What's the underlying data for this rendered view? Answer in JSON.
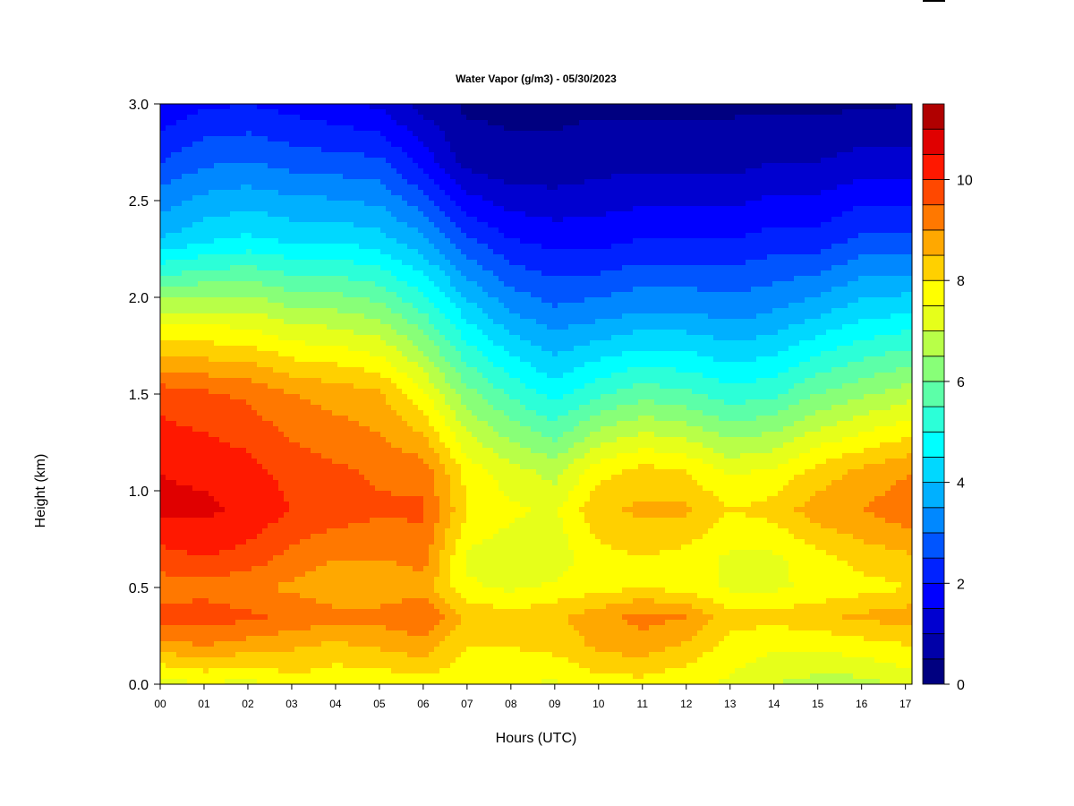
{
  "chart_data": {
    "type": "heatmap",
    "title": "Water Vapor (g/m3) - 05/30/2023",
    "xlabel": "Hours (UTC)",
    "ylabel": "Height (km)",
    "x_ticks": [
      "00",
      "01",
      "02",
      "03",
      "04",
      "05",
      "06",
      "07",
      "08",
      "09",
      "10",
      "11",
      "12",
      "13",
      "14",
      "15",
      "16",
      "17"
    ],
    "x_range_hours": [
      0,
      17.15
    ],
    "y_ticks": [
      "0.0",
      "0.5",
      "1.0",
      "1.5",
      "2.0",
      "2.5",
      "3.0"
    ],
    "ylim": [
      0,
      3
    ],
    "colorbar": {
      "ticks": [
        "0",
        "2",
        "4",
        "6",
        "8",
        "10"
      ],
      "range": [
        0,
        11.5
      ],
      "levels": 23,
      "colors": [
        "#000080",
        "#0000a8",
        "#0000d0",
        "#0000ff",
        "#0022ff",
        "#0055ff",
        "#0088ff",
        "#00b0ff",
        "#00d8ff",
        "#00ffff",
        "#2cffd8",
        "#5cffa8",
        "#88ff78",
        "#b8ff48",
        "#e6ff1a",
        "#ffff00",
        "#ffd000",
        "#ffa800",
        "#ff7800",
        "#ff4800",
        "#ff1800",
        "#e00000",
        "#b00000",
        "#800000"
      ]
    },
    "profiles": [
      {
        "hour": 0.0,
        "heights_km": [
          0.0,
          0.2,
          0.35,
          0.5,
          0.65,
          0.9,
          1.1,
          1.5,
          1.9,
          2.3,
          2.7,
          3.0
        ],
        "values": [
          7.2,
          8.8,
          9.7,
          9.2,
          9.8,
          10.6,
          10.5,
          9.8,
          7.2,
          4.0,
          2.5,
          1.6
        ]
      },
      {
        "hour": 1.0,
        "heights_km": [
          0.0,
          0.2,
          0.35,
          0.5,
          0.65,
          0.9,
          1.1,
          1.5,
          1.9,
          2.3,
          2.7,
          3.0
        ],
        "values": [
          7.5,
          9.0,
          9.8,
          9.3,
          10.0,
          10.6,
          10.4,
          9.6,
          7.2,
          4.4,
          2.9,
          1.9
        ]
      },
      {
        "hour": 2.0,
        "heights_km": [
          0.0,
          0.2,
          0.35,
          0.5,
          0.65,
          0.9,
          1.1,
          1.5,
          1.9,
          2.3,
          2.7,
          3.0
        ],
        "values": [
          7.3,
          8.8,
          9.6,
          9.1,
          9.8,
          10.4,
          10.2,
          9.4,
          7.2,
          4.6,
          3.0,
          2.0
        ]
      },
      {
        "hour": 3.0,
        "heights_km": [
          0.0,
          0.2,
          0.35,
          0.5,
          0.65,
          0.9,
          1.1,
          1.5,
          1.9,
          2.3,
          2.7,
          3.0
        ],
        "values": [
          7.8,
          8.6,
          9.4,
          8.9,
          9.3,
          10.0,
          9.8,
          9.0,
          6.8,
          4.4,
          2.8,
          1.8
        ]
      },
      {
        "hour": 4.0,
        "heights_km": [
          0.0,
          0.2,
          0.35,
          0.5,
          0.65,
          0.9,
          1.1,
          1.5,
          1.9,
          2.3,
          2.7,
          3.0
        ],
        "values": [
          7.6,
          8.4,
          9.2,
          8.6,
          9.0,
          9.8,
          9.6,
          8.8,
          6.7,
          4.4,
          2.7,
          1.6
        ]
      },
      {
        "hour": 5.0,
        "heights_km": [
          0.0,
          0.2,
          0.35,
          0.5,
          0.65,
          0.9,
          1.1,
          1.5,
          1.9,
          2.3,
          2.7,
          3.0
        ],
        "values": [
          7.6,
          8.6,
          9.2,
          8.6,
          9.0,
          9.6,
          9.4,
          8.6,
          6.4,
          4.2,
          2.6,
          1.4
        ]
      },
      {
        "hour": 6.0,
        "heights_km": [
          0.0,
          0.2,
          0.35,
          0.5,
          0.65,
          0.9,
          1.1,
          1.5,
          1.9,
          2.3,
          2.7,
          3.0
        ],
        "values": [
          7.8,
          8.8,
          9.5,
          8.8,
          9.2,
          9.6,
          9.3,
          7.6,
          5.6,
          3.6,
          1.8,
          0.8
        ]
      },
      {
        "hour": 7.0,
        "heights_km": [
          0.0,
          0.2,
          0.35,
          0.5,
          0.65,
          0.9,
          1.1,
          1.5,
          1.9,
          2.3,
          2.7,
          3.0
        ],
        "values": [
          7.6,
          8.0,
          8.4,
          7.6,
          7.4,
          8.0,
          7.8,
          6.2,
          4.4,
          2.6,
          0.8,
          0.4
        ]
      },
      {
        "hour": 8.0,
        "heights_km": [
          0.0,
          0.2,
          0.35,
          0.5,
          0.65,
          0.9,
          1.1,
          1.5,
          1.9,
          2.3,
          2.7,
          3.0
        ],
        "values": [
          7.6,
          8.0,
          8.2,
          7.4,
          7.2,
          7.6,
          7.2,
          5.4,
          3.6,
          2.0,
          0.6,
          0.4
        ]
      },
      {
        "hour": 9.0,
        "heights_km": [
          0.0,
          0.2,
          0.35,
          0.5,
          0.65,
          0.9,
          1.1,
          1.5,
          1.9,
          2.3,
          2.7,
          3.0
        ],
        "values": [
          7.4,
          8.2,
          8.4,
          7.6,
          7.2,
          7.4,
          6.8,
          4.8,
          3.2,
          1.8,
          0.6,
          0.4
        ]
      },
      {
        "hour": 10.0,
        "heights_km": [
          0.0,
          0.2,
          0.35,
          0.5,
          0.65,
          0.9,
          1.1,
          1.5,
          1.9,
          2.3,
          2.7,
          3.0
        ],
        "values": [
          7.8,
          8.6,
          8.8,
          7.8,
          7.8,
          8.4,
          7.8,
          5.4,
          3.4,
          1.8,
          0.8,
          0.4
        ]
      },
      {
        "hour": 11.0,
        "heights_km": [
          0.0,
          0.2,
          0.35,
          0.5,
          0.65,
          0.9,
          1.1,
          1.5,
          1.9,
          2.3,
          2.7,
          3.0
        ],
        "values": [
          7.8,
          8.8,
          9.2,
          8.0,
          8.0,
          8.6,
          8.2,
          5.8,
          3.6,
          2.0,
          0.8,
          0.4
        ]
      },
      {
        "hour": 12.0,
        "heights_km": [
          0.0,
          0.2,
          0.35,
          0.5,
          0.65,
          0.9,
          1.1,
          1.5,
          1.9,
          2.3,
          2.7,
          3.0
        ],
        "values": [
          7.6,
          8.4,
          9.0,
          7.8,
          7.8,
          8.6,
          8.0,
          5.6,
          3.6,
          2.0,
          0.8,
          0.4
        ]
      },
      {
        "hour": 13.0,
        "heights_km": [
          0.0,
          0.2,
          0.35,
          0.5,
          0.65,
          0.9,
          1.1,
          1.5,
          1.9,
          2.3,
          2.7,
          3.0
        ],
        "values": [
          7.4,
          7.8,
          8.2,
          7.4,
          7.4,
          8.0,
          7.4,
          5.2,
          3.4,
          2.0,
          0.8,
          0.4
        ]
      },
      {
        "hour": 14.0,
        "heights_km": [
          0.0,
          0.2,
          0.35,
          0.5,
          0.65,
          0.9,
          1.1,
          1.5,
          1.9,
          2.3,
          2.7,
          3.0
        ],
        "values": [
          7.0,
          7.6,
          8.2,
          7.4,
          7.4,
          8.2,
          7.6,
          5.4,
          3.6,
          2.2,
          1.0,
          0.4
        ]
      },
      {
        "hour": 15.0,
        "heights_km": [
          0.0,
          0.2,
          0.35,
          0.5,
          0.65,
          0.9,
          1.1,
          1.5,
          1.9,
          2.3,
          2.7,
          3.0
        ],
        "values": [
          6.8,
          7.6,
          8.4,
          7.6,
          7.8,
          8.8,
          8.2,
          6.0,
          4.0,
          2.2,
          1.0,
          0.4
        ]
      },
      {
        "hour": 16.0,
        "heights_km": [
          0.0,
          0.2,
          0.35,
          0.5,
          0.65,
          0.9,
          1.1,
          1.5,
          1.9,
          2.3,
          2.7,
          3.0
        ],
        "values": [
          6.8,
          7.8,
          8.6,
          7.8,
          8.2,
          9.0,
          8.6,
          6.4,
          4.4,
          2.6,
          1.2,
          0.4
        ]
      },
      {
        "hour": 17.15,
        "heights_km": [
          0.0,
          0.2,
          0.35,
          0.5,
          0.65,
          0.9,
          1.1,
          1.5,
          1.9,
          2.3,
          2.7,
          3.0
        ],
        "values": [
          7.2,
          8.0,
          8.8,
          8.0,
          8.4,
          9.4,
          9.0,
          6.8,
          4.6,
          2.6,
          1.2,
          0.5
        ]
      }
    ]
  }
}
